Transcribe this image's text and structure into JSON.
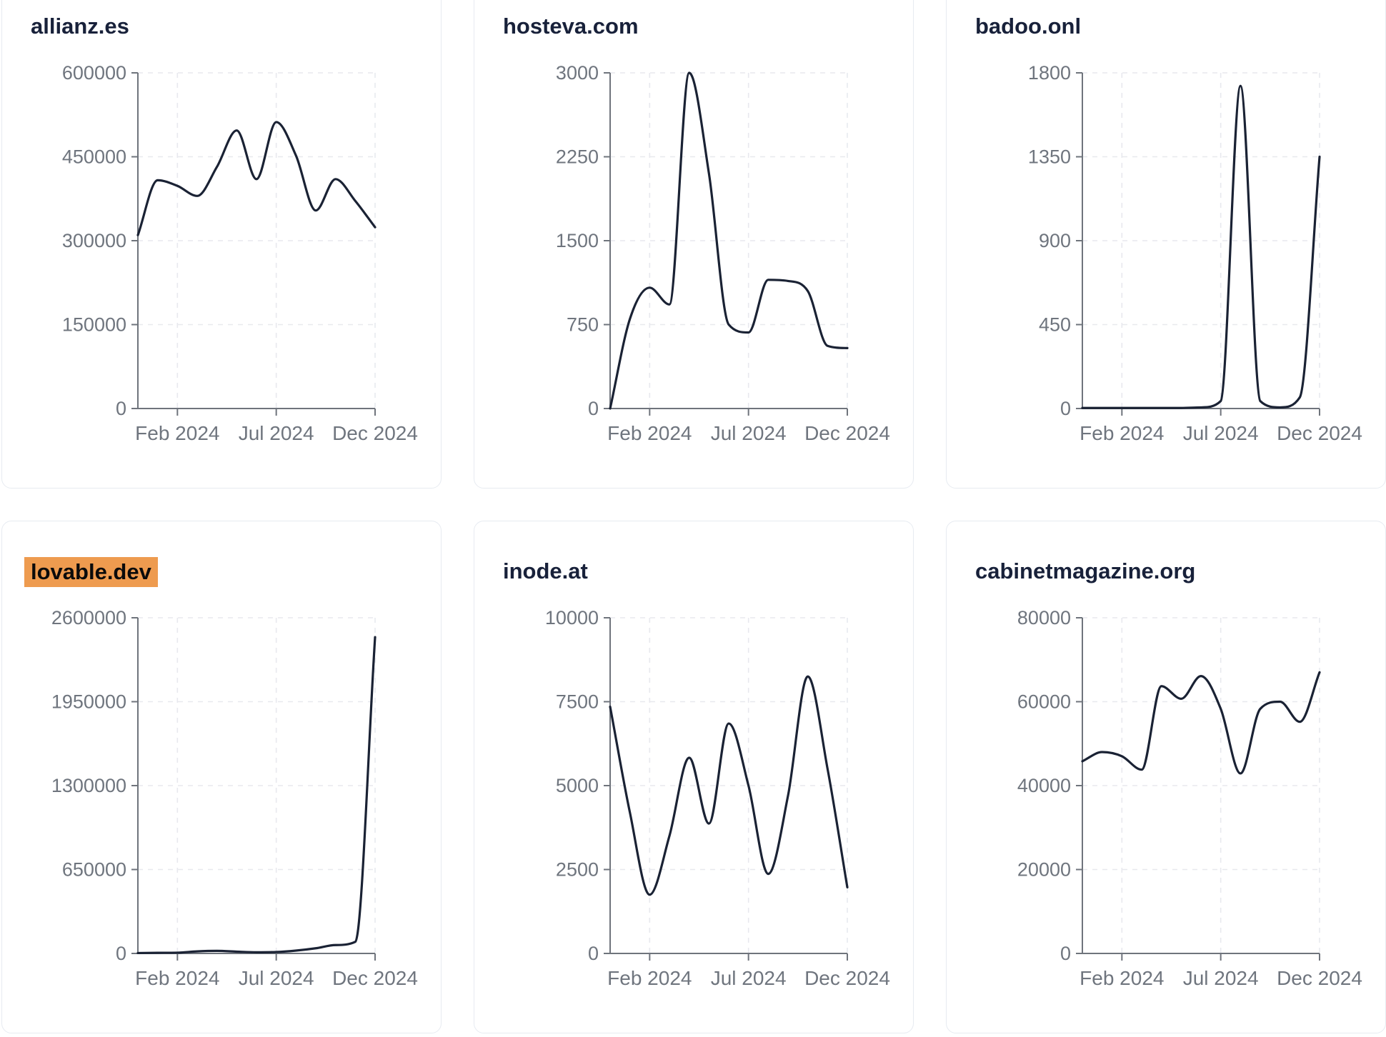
{
  "colors": {
    "line": "#1a2234",
    "title": "#18213a",
    "highlight_bg": "#ee9b4f",
    "highlight_text": "#0b0b0b",
    "axis": "#6f747c",
    "tick_label": "#6f757e",
    "grid": "#e8e9ee",
    "card_border": "#e7ebf1",
    "card_bg": "#ffffff"
  },
  "chart_data": [
    {
      "type": "line",
      "title": "allianz.es",
      "highlighted": false,
      "ylim": [
        0,
        600000
      ],
      "y_tick_labels": [
        "0",
        "150000",
        "300000",
        "450000",
        "600000"
      ],
      "x_tick_labels": [
        "Feb 2024",
        "Jul 2024",
        "Dec 2024"
      ],
      "x_tick_point_index": [
        2,
        7,
        12
      ],
      "grid": "dashed",
      "points_note": "13 monthly values, evenly spaced, first point at y-axis, last at Dec 2024 tick",
      "points": [
        310000,
        408000,
        398000,
        380000,
        432000,
        497000,
        410000,
        512000,
        452000,
        354000,
        410000,
        371000,
        324000
      ]
    },
    {
      "type": "line",
      "title": "hosteva.com",
      "highlighted": false,
      "ylim": [
        0,
        3000
      ],
      "y_tick_labels": [
        "0",
        "750",
        "1500",
        "2250",
        "3000"
      ],
      "x_tick_labels": [
        "Feb 2024",
        "Jul 2024",
        "Dec 2024"
      ],
      "x_tick_point_index": [
        2,
        7,
        12
      ],
      "grid": "dashed",
      "points_note": "13 monthly values, evenly spaced, first point at y-axis, last at Dec 2024 tick",
      "points": [
        0,
        800,
        1080,
        930,
        3000,
        2100,
        750,
        680,
        1150,
        1140,
        1050,
        560,
        540
      ]
    },
    {
      "type": "line",
      "title": "badoo.onl",
      "highlighted": false,
      "ylim": [
        0,
        1800
      ],
      "y_tick_labels": [
        "0",
        "450",
        "900",
        "1350",
        "1800"
      ],
      "x_tick_labels": [
        "Feb 2024",
        "Jul 2024",
        "Dec 2024"
      ],
      "x_tick_point_index": [
        2,
        7,
        12
      ],
      "grid": "dashed",
      "points_note": "13 monthly values, evenly spaced, first point at y-axis, last at Dec 2024 tick",
      "points": [
        3,
        3,
        3,
        3,
        3,
        3,
        6,
        40,
        1730,
        40,
        6,
        60,
        1350
      ]
    },
    {
      "type": "line",
      "title": "lovable.dev",
      "highlighted": true,
      "ylim": [
        0,
        2600000
      ],
      "y_tick_labels": [
        "0",
        "650000",
        "1300000",
        "1950000",
        "2600000"
      ],
      "x_tick_labels": [
        "Feb 2024",
        "Jul 2024",
        "Dec 2024"
      ],
      "x_tick_point_index": [
        2,
        7,
        12
      ],
      "grid": "dashed",
      "points_note": "13 monthly values, evenly spaced, first point at y-axis, last at Dec 2024 tick",
      "points": [
        3000,
        5000,
        6000,
        16000,
        20000,
        14000,
        9000,
        11000,
        22000,
        40000,
        65000,
        90000,
        2450000
      ]
    },
    {
      "type": "line",
      "title": "inode.at",
      "highlighted": false,
      "ylim": [
        0,
        10000
      ],
      "y_tick_labels": [
        "0",
        "2500",
        "5000",
        "7500",
        "10000"
      ],
      "x_tick_labels": [
        "Feb 2024",
        "Jul 2024",
        "Dec 2024"
      ],
      "x_tick_point_index": [
        2,
        7,
        12
      ],
      "grid": "dashed",
      "points_note": "13 monthly values, evenly spaced, first point at y-axis, last at Dec 2024 tick",
      "points": [
        7350,
        4200,
        1750,
        3500,
        5830,
        3870,
        6850,
        5000,
        2370,
        4700,
        8250,
        5500,
        1970
      ]
    },
    {
      "type": "line",
      "title": "cabinetmagazine.org",
      "highlighted": false,
      "ylim": [
        0,
        80000
      ],
      "y_tick_labels": [
        "0",
        "20000",
        "40000",
        "60000",
        "80000"
      ],
      "x_tick_labels": [
        "Feb 2024",
        "Jul 2024",
        "Dec 2024"
      ],
      "x_tick_point_index": [
        2,
        7,
        12
      ],
      "grid": "dashed",
      "points_note": "13 monthly values, evenly spaced, first point at y-axis, last at Dec 2024 tick",
      "points": [
        45800,
        48000,
        47000,
        43800,
        63700,
        60700,
        66100,
        58300,
        42900,
        58300,
        60000,
        55200,
        67000
      ]
    }
  ]
}
